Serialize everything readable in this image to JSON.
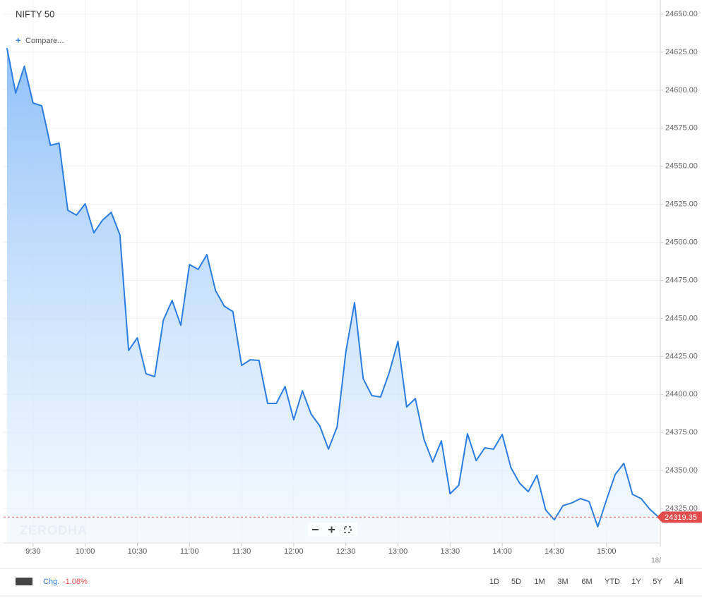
{
  "chart_data": {
    "type": "area",
    "title": "NIFTY 50",
    "compare_label": "Compare...",
    "watermark": "ZERODHA",
    "color": "#2b7de0",
    "x": [
      555,
      560,
      565,
      570,
      575,
      580,
      585,
      590,
      595,
      600,
      605,
      610,
      615,
      620,
      625,
      630,
      635,
      640,
      645,
      650,
      655,
      660,
      665,
      670,
      675,
      680,
      685,
      690,
      695,
      700,
      705,
      710,
      715,
      720,
      725,
      730,
      735,
      740,
      745,
      750,
      755,
      760,
      765,
      770,
      775,
      780,
      785,
      790,
      795,
      800,
      805,
      810,
      815,
      820,
      825,
      830,
      835,
      840,
      845,
      850,
      855,
      860,
      865,
      870,
      875,
      880,
      885,
      890,
      895,
      900,
      905,
      910,
      915,
      920,
      925,
      930
    ],
    "values": [
      24627.7,
      24598.1,
      24615.7,
      24591.6,
      24589.7,
      24563.8,
      24565.2,
      24521.1,
      24517.9,
      24525.3,
      24506.3,
      24514.6,
      24519.7,
      24504.9,
      24428.9,
      24437.2,
      24413.6,
      24411.7,
      24448.8,
      24461.8,
      24445.5,
      24485.4,
      24482.2,
      24491.9,
      24468.3,
      24458.1,
      24454.4,
      24419.1,
      24422.8,
      24422.4,
      24394.1,
      24394.1,
      24405.2,
      24383.4,
      24402.4,
      24387.1,
      24379.3,
      24364.0,
      24378.8,
      24427.9,
      24460.4,
      24410.3,
      24399.2,
      24398.3,
      24414.5,
      24434.9,
      24391.8,
      24397.3,
      24370.4,
      24355.6,
      24369.5,
      24334.7,
      24340.3,
      24374.2,
      24356.5,
      24364.9,
      24364.0,
      24373.7,
      24351.9,
      24341.7,
      24336.1,
      24346.8,
      24324.1,
      24317.6,
      24326.9,
      24328.7,
      24331.5,
      24329.6,
      24313.0,
      24330.6,
      24347.3,
      24354.7,
      24334.3,
      24331.5,
      24324.5,
      24319.35
    ],
    "xlim": [
      553,
      931
    ],
    "ylim": [
      24302.3,
      24659.3
    ],
    "xticks": [
      {
        "value": 570,
        "label": "9:30"
      },
      {
        "value": 600,
        "label": "10:00"
      },
      {
        "value": 630,
        "label": "10:30"
      },
      {
        "value": 660,
        "label": "11:00"
      },
      {
        "value": 690,
        "label": "11:30"
      },
      {
        "value": 720,
        "label": "12:00"
      },
      {
        "value": 750,
        "label": "12:30"
      },
      {
        "value": 780,
        "label": "13:00"
      },
      {
        "value": 810,
        "label": "13:30"
      },
      {
        "value": 840,
        "label": "14:00"
      },
      {
        "value": 870,
        "label": "14:30"
      },
      {
        "value": 900,
        "label": "15:00"
      }
    ],
    "yticks": [
      {
        "value": 24325,
        "label": "24325.00"
      },
      {
        "value": 24350,
        "label": "24350.00"
      },
      {
        "value": 24375,
        "label": "24375.00"
      },
      {
        "value": 24400,
        "label": "24400.00"
      },
      {
        "value": 24425,
        "label": "24425.00"
      },
      {
        "value": 24450,
        "label": "24450.00"
      },
      {
        "value": 24475,
        "label": "24475.00"
      },
      {
        "value": 24500,
        "label": "24500.00"
      },
      {
        "value": 24525,
        "label": "24525.00"
      },
      {
        "value": 24550,
        "label": "24550.00"
      },
      {
        "value": 24575,
        "label": "24575.00"
      },
      {
        "value": 24600,
        "label": "24600.00"
      },
      {
        "value": 24625,
        "label": "24625.00"
      },
      {
        "value": 24650,
        "label": "24650.00"
      }
    ],
    "date_label": "18/",
    "grid": true,
    "change_label": "Chg.",
    "change_value": "-1.08%",
    "ranges": [
      "1D",
      "5D",
      "1M",
      "3M",
      "6M",
      "YTD",
      "1Y",
      "5Y",
      "All"
    ]
  }
}
